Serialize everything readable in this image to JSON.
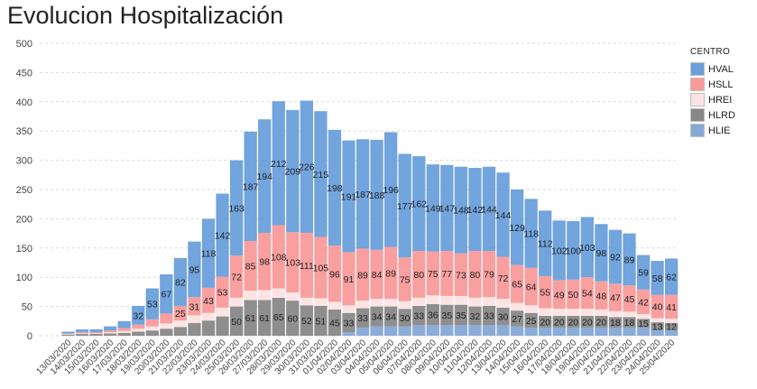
{
  "title": "Evolucion Hospitalización",
  "legend": {
    "title": "CENTRO",
    "items": [
      {
        "name": "HVAL",
        "color": "#6a9fdb"
      },
      {
        "name": "HSLL",
        "color": "#f99a9a"
      },
      {
        "name": "HREI",
        "color": "#fde3e3"
      },
      {
        "name": "HLRD",
        "color": "#888888"
      },
      {
        "name": "HLIE",
        "color": "#86a8d6"
      }
    ]
  },
  "chart_data": {
    "type": "bar",
    "stacked": true,
    "title": "Evolucion Hospitalización",
    "xlabel": "",
    "ylabel": "",
    "ylim": [
      0,
      500
    ],
    "yticks": [
      0,
      50,
      100,
      150,
      200,
      250,
      300,
      350,
      400,
      450,
      500
    ],
    "grid": true,
    "legend_position": "right",
    "categories": [
      "13/03/2020",
      "14/03/2020",
      "15/03/2020",
      "16/03/2020",
      "17/03/2020",
      "18/03/2020",
      "19/03/2020",
      "20/03/2020",
      "21/03/2020",
      "22/03/2020",
      "23/03/2020",
      "24/03/2020",
      "25/03/2020",
      "26/03/2020",
      "27/03/2020",
      "28/03/2020",
      "29/03/2020",
      "30/03/2020",
      "31/03/2020",
      "01/04/2020",
      "02/04/2020",
      "03/04/2020",
      "04/04/2020",
      "05/04/2020",
      "06/04/2020",
      "07/04/2020",
      "08/04/2020",
      "09/04/2020",
      "10/04/2020",
      "11/04/2020",
      "12/04/2020",
      "13/04/2020",
      "14/04/2020",
      "15/04/2020",
      "16/04/2020",
      "17/04/2020",
      "18/04/2020",
      "19/04/2020",
      "20/04/2020",
      "21/04/2020",
      "22/04/2020",
      "23/04/2020",
      "24/04/2020",
      "25/04/2020"
    ],
    "series": [
      {
        "name": "HLIE",
        "values": [
          0,
          0,
          0,
          0,
          0,
          0,
          0,
          0,
          0,
          0,
          0,
          0,
          0,
          0,
          0,
          0,
          0,
          0,
          0,
          0,
          6,
          14,
          16,
          16,
          16,
          18,
          18,
          18,
          18,
          18,
          18,
          18,
          16,
          14,
          14,
          14,
          14,
          14,
          14,
          14,
          14,
          14,
          10,
          10
        ]
      },
      {
        "name": "HLRD",
        "values": [
          2,
          3,
          3,
          4,
          5,
          7,
          9,
          12,
          15,
          22,
          26,
          33,
          50,
          61,
          61,
          65,
          60,
          52,
          51,
          45,
          33,
          33,
          34,
          34,
          30,
          33,
          36,
          35,
          35,
          32,
          33,
          30,
          27,
          25,
          20,
          20,
          20,
          20,
          20,
          18,
          18,
          15,
          13,
          12
        ]
      },
      {
        "name": "HREI",
        "values": [
          1,
          1,
          1,
          2,
          3,
          5,
          7,
          9,
          11,
          13,
          13,
          15,
          15,
          16,
          17,
          16,
          14,
          13,
          13,
          13,
          13,
          13,
          13,
          13,
          13,
          14,
          15,
          15,
          15,
          15,
          15,
          15,
          13,
          13,
          13,
          12,
          12,
          12,
          11,
          10,
          9,
          8,
          7,
          7
        ]
      },
      {
        "name": "HSLL",
        "values": [
          1,
          2,
          2,
          3,
          5,
          7,
          12,
          17,
          25,
          31,
          43,
          53,
          72,
          85,
          98,
          108,
          103,
          111,
          105,
          96,
          91,
          89,
          84,
          89,
          75,
          80,
          75,
          77,
          73,
          80,
          79,
          72,
          65,
          64,
          55,
          49,
          50,
          54,
          48,
          47,
          45,
          42,
          40,
          41
        ]
      },
      {
        "name": "HVAL",
        "values": [
          3,
          5,
          5,
          7,
          12,
          32,
          53,
          67,
          82,
          95,
          118,
          142,
          163,
          187,
          194,
          212,
          209,
          226,
          215,
          198,
          191,
          187,
          188,
          196,
          177,
          162,
          149,
          147,
          148,
          142,
          144,
          144,
          129,
          118,
          112,
          102,
          100,
          103,
          98,
          92,
          89,
          59,
          58,
          62
        ]
      }
    ],
    "data_labels": {
      "HLRD_from_index": 12,
      "HSLL_from_index": 8,
      "HVAL_from_index": 5
    }
  }
}
